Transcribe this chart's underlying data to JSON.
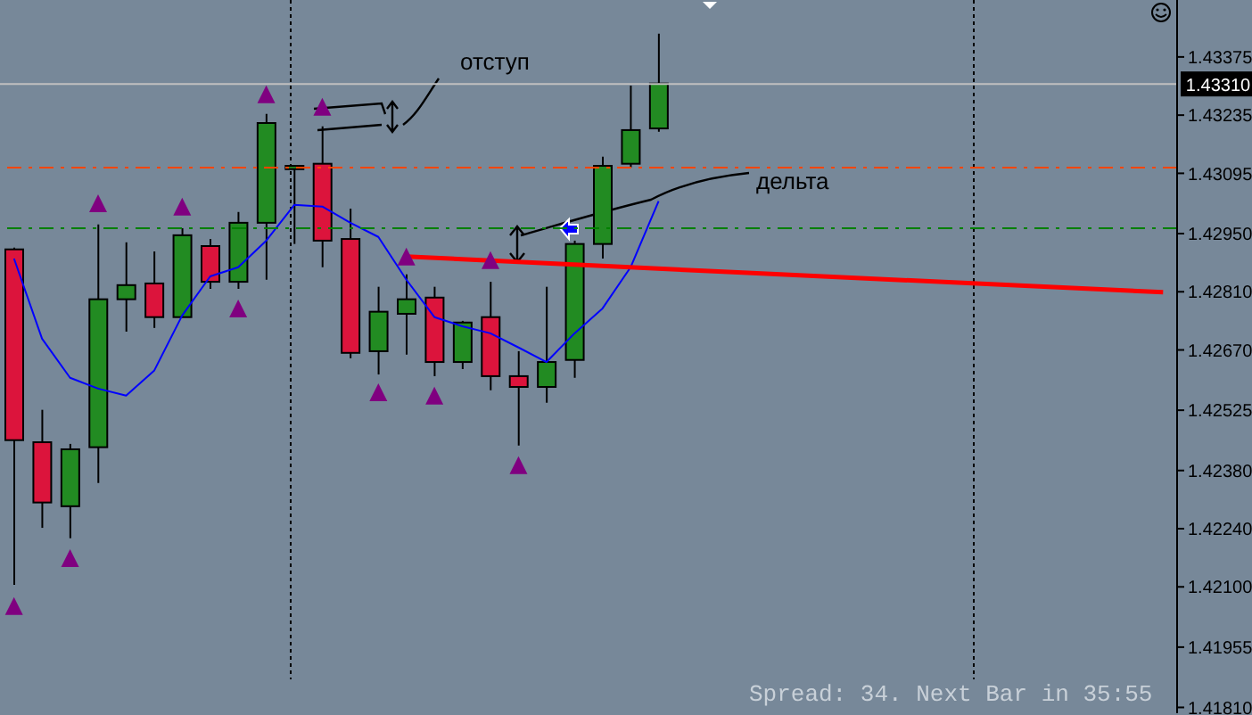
{
  "chart_data": {
    "type": "candlestick",
    "categories": [
      null,
      null,
      null,
      null,
      null,
      null,
      null,
      null,
      null,
      null,
      null,
      null,
      null,
      null,
      null,
      null,
      null,
      null,
      null,
      null,
      null,
      null,
      null,
      null,
      null,
      null,
      null,
      null,
      null,
      null,
      null,
      null,
      null,
      null,
      null,
      null,
      null,
      null,
      null,
      null,
      null,
      null
    ],
    "ohlc": [
      [
        1.42912,
        1.42916,
        1.42105,
        1.42453
      ],
      [
        1.42448,
        1.42526,
        1.42242,
        1.42303
      ],
      [
        1.42294,
        1.42444,
        1.42217,
        1.42431
      ],
      [
        1.42436,
        1.42972,
        1.4235,
        1.42792
      ],
      [
        1.42792,
        1.42929,
        1.42714,
        1.42826
      ],
      [
        1.4283,
        1.42907,
        1.42723,
        1.42749
      ],
      [
        1.42749,
        1.42963,
        1.42749,
        1.42946
      ],
      [
        1.4292,
        1.42937,
        1.42817,
        1.42834
      ],
      [
        1.42834,
        1.43002,
        1.42817,
        1.42976
      ],
      [
        1.42976,
        1.43238,
        1.42839,
        1.43216
      ],
      [
        1.43105,
        1.43113,
        1.42925,
        1.43113
      ],
      [
        1.43118,
        1.43208,
        1.42869,
        1.42933
      ],
      [
        1.42937,
        1.4301,
        1.4265,
        1.42663
      ],
      [
        1.42667,
        1.42822,
        1.42611,
        1.42762
      ],
      [
        1.42757,
        1.42852,
        1.42659,
        1.42792
      ],
      [
        1.42796,
        1.42822,
        1.42607,
        1.42641
      ],
      [
        1.42641,
        1.4274,
        1.42624,
        1.42736
      ],
      [
        1.42749,
        1.42834,
        1.42573,
        1.42607
      ],
      [
        1.42607,
        1.42667,
        1.4244,
        1.42581
      ],
      [
        1.42581,
        1.42822,
        1.42543,
        1.42641
      ],
      [
        1.42646,
        1.42933,
        1.42603,
        1.42925
      ],
      [
        1.42925,
        1.43135,
        1.4289,
        1.43113
      ],
      [
        1.43118,
        1.43306,
        1.43109,
        1.43199
      ],
      [
        1.43203,
        1.43431,
        1.43195,
        1.43311
      ],
      null,
      null,
      null,
      null,
      null,
      null,
      null,
      null,
      null,
      null,
      null,
      null,
      null,
      null,
      null,
      null,
      null,
      null
    ],
    "colors": [
      "#dc143c",
      "#dc143c",
      "#228b22",
      "#228b22",
      "#228b22",
      "#dc143c",
      "#228b22",
      "#dc143c",
      "#228b22",
      "#228b22",
      "#228b22",
      "#dc143c",
      "#dc143c",
      "#228b22",
      "#228b22",
      "#dc143c",
      "#228b22",
      "#dc143c",
      "#dc143c",
      "#228b22",
      "#228b22",
      "#228b22",
      "#228b22",
      "#228b22",
      null,
      null,
      null,
      null,
      null,
      null,
      null,
      null,
      null,
      null,
      null,
      null,
      null,
      null,
      null,
      null,
      null,
      null
    ],
    "series": [
      {
        "type": "line",
        "color": "#0000ff",
        "values": [
          1.4289,
          1.42697,
          1.42603,
          1.42577,
          1.4256,
          1.4262,
          1.42753,
          1.42847,
          1.42869,
          1.42933,
          1.43019,
          1.43015,
          1.42976,
          1.42942,
          1.42839,
          1.42749,
          1.42727,
          1.4271,
          1.42676,
          1.42641,
          1.4271,
          1.4277,
          1.42869,
          1.43028,
          null,
          null,
          null,
          null,
          null,
          null,
          null,
          null,
          null,
          null,
          null,
          null,
          null,
          null,
          null,
          null,
          null,
          null
        ]
      },
      {
        "type": "line",
        "color": "#ff0000",
        "values": [
          null,
          null,
          null,
          null,
          null,
          null,
          null,
          null,
          null,
          null,
          null,
          null,
          null,
          null,
          1.42895,
          null,
          null,
          null,
          null,
          null,
          null,
          null,
          null,
          null,
          null,
          null,
          1.42856,
          null,
          null,
          null,
          null,
          null,
          null,
          null,
          null,
          null,
          null,
          null,
          null,
          null,
          null,
          1.42809
        ]
      },
      {
        "type": "scatter",
        "color": "#800080",
        "marker": "triangle",
        "values": [
          null,
          null,
          null,
          1.43023,
          null,
          null,
          1.43015,
          null,
          null,
          1.43285,
          null,
          1.43255,
          null,
          null,
          1.42895,
          null,
          null,
          1.42886,
          null,
          null,
          null,
          null,
          null,
          null,
          null,
          null,
          null,
          null,
          null,
          null,
          null,
          null,
          null,
          null,
          null,
          null,
          null,
          null,
          null,
          null,
          null,
          null
        ]
      },
      {
        "type": "scatter",
        "color": "#800080",
        "marker": "triangle",
        "values": [
          1.42054,
          null,
          1.42169,
          null,
          null,
          null,
          null,
          null,
          1.4277,
          null,
          null,
          null,
          null,
          1.42568,
          null,
          1.4256,
          null,
          null,
          1.42393,
          null,
          null,
          null,
          null,
          null,
          null,
          null,
          null,
          null,
          null,
          null,
          null,
          null,
          null,
          null,
          null,
          null,
          null,
          null,
          null,
          null,
          null,
          null
        ]
      }
    ],
    "ylim": [
      1.41796,
      1.43512
    ],
    "yticks": [
      1.43375,
      1.43235,
      1.43095,
      {
        "value": 1.4295,
        "label": "1.42950"
      },
      {
        "value": 1.4281,
        "label": "1.42810"
      },
      {
        "value": 1.4267,
        "label": "1.42670"
      },
      1.42525,
      {
        "value": 1.4238,
        "label": "1.42380"
      },
      {
        "value": 1.4224,
        "label": "1.42240"
      },
      {
        "value": 1.421,
        "label": "1.42100"
      },
      1.41955,
      {
        "value": 1.4181,
        "label": "1.41810"
      }
    ],
    "tick_labels": "y",
    "ref_lines": [
      {
        "axis": "y",
        "value": 1.4331,
        "label": "1.43310",
        "color": "#c0c0c0",
        "line_style": "solid"
      },
      {
        "axis": "y",
        "value": 1.43109,
        "color": "#ff4500",
        "line_style": "dashed"
      },
      {
        "axis": "y",
        "value": 1.42963,
        "color": "#008000",
        "line_style": "dashed"
      }
    ],
    "annotations": [
      "отступ",
      "дельта",
      "Spread: 34. Next Bar in 35:55"
    ]
  }
}
